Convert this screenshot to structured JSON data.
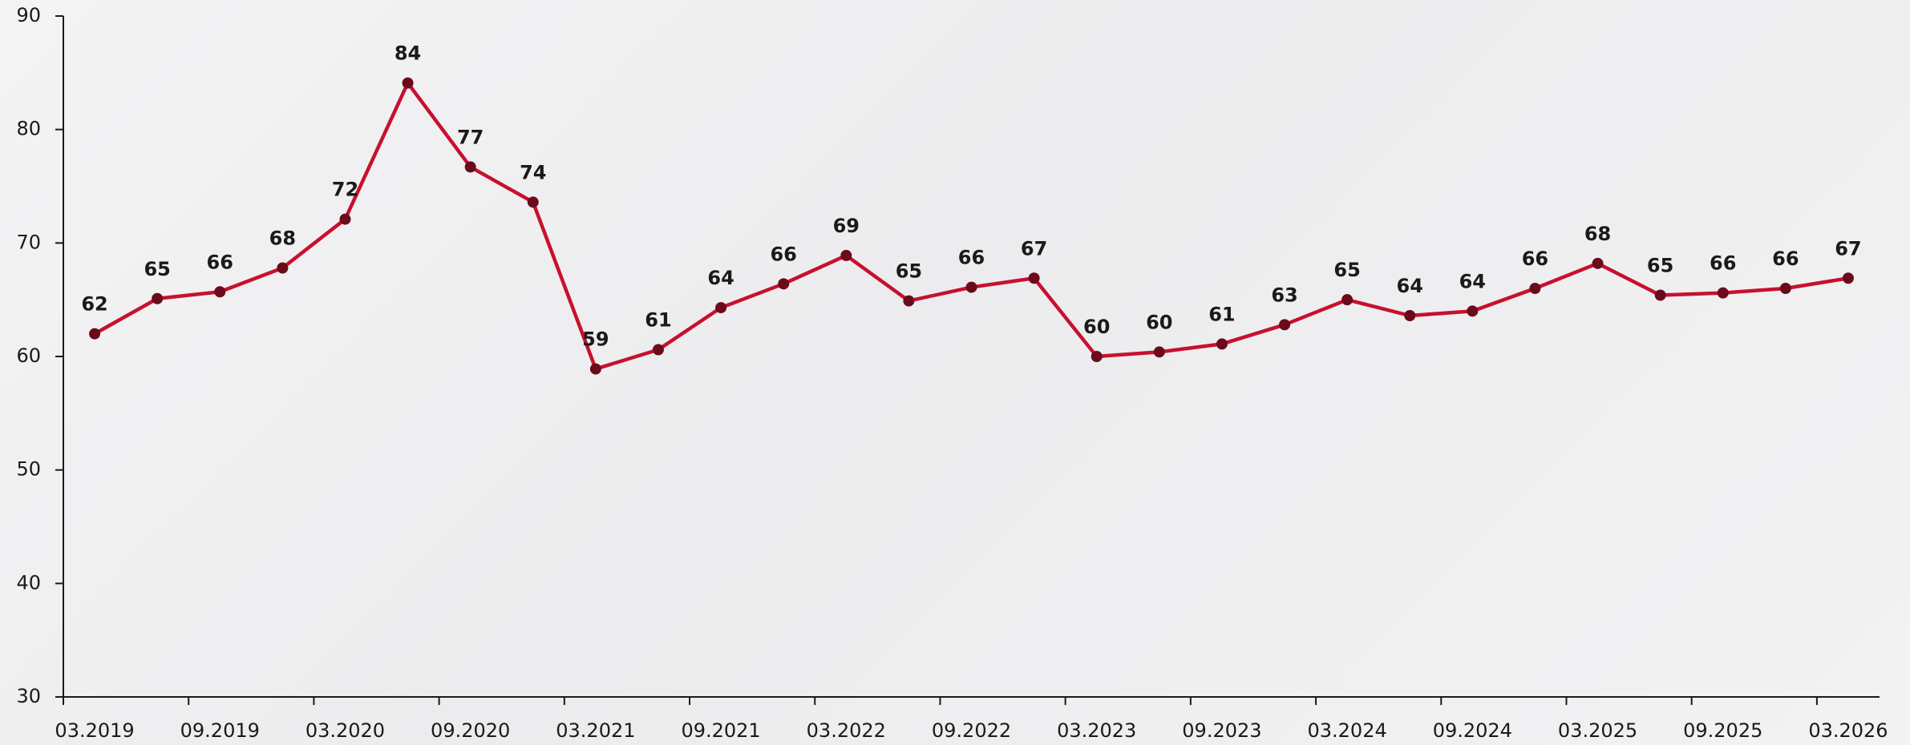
{
  "chart_data": {
    "type": "line",
    "categories": [
      "03.2019",
      null,
      "09.2019",
      null,
      "03.2020",
      null,
      "09.2020",
      null,
      "03.2021",
      null,
      "09.2021",
      null,
      "03.2022",
      null,
      "09.2022",
      null,
      "03.2023",
      null,
      "09.2023",
      null,
      "03.2024",
      null,
      "09.2024",
      null,
      "03.2025",
      null,
      "09.2025",
      null,
      "03.2026"
    ],
    "series": [
      {
        "color": "#c8102e",
        "values": [
          62.0,
          65.1,
          65.7,
          67.8,
          72.1,
          84.1,
          76.7,
          73.6,
          58.9,
          60.6,
          64.3,
          66.4,
          68.9,
          64.9,
          66.1,
          66.9,
          60.0,
          60.4,
          61.1,
          62.8,
          65.0,
          63.6,
          64.0,
          66.0,
          68.2,
          65.4,
          65.6,
          66.0,
          66.9
        ],
        "value_labels": [
          "62",
          "65",
          "66",
          "68",
          "72",
          "84",
          "77",
          "74",
          "59",
          "61",
          "64",
          "66",
          "69",
          "65",
          "66",
          "67",
          "60",
          "60",
          "61",
          "63",
          "65",
          "64",
          "64",
          "66",
          "68",
          "65",
          "66",
          "66",
          "67"
        ]
      }
    ],
    "marker_color": "#6b0a1a",
    "ylim": [
      30,
      90
    ],
    "yticks": [
      30,
      40,
      50,
      60,
      70,
      80,
      90
    ],
    "grid": false
  }
}
